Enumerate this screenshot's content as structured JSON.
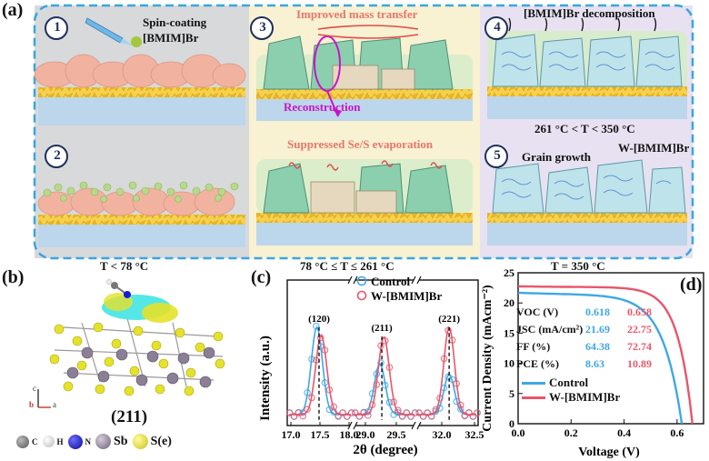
{
  "panel_labels": {
    "a": "(a)",
    "b": "(b)",
    "c": "(c)",
    "d": "(d)"
  },
  "panel_a": {
    "steps": [
      {
        "num": "1",
        "label": "Spin-coating\n[BMIM]Br"
      },
      {
        "num": "2",
        "label": "T < 78 °C"
      },
      {
        "num": "3",
        "label_top": "Improved mass transfer",
        "label_mid": "Reconstruction",
        "label_bottom": "Suppressed Se/S evaporation",
        "temp": "78 °C ≤ T ≤ 261 °C"
      },
      {
        "num": "4",
        "label": "[BMIM]Br decomposition",
        "temp": "261 °C < T < 350 °C"
      },
      {
        "num": "5",
        "label": "Grain growth",
        "label2": "W-[BMIM]Br",
        "temp": "T = 350 °C"
      }
    ],
    "colors": {
      "col1": "#d8d9db",
      "col2": "#f8f1d2",
      "col3": "#e7e1f1",
      "border": "#39a6e0",
      "red_text": "#e8766b",
      "magenta": "#c914c9"
    }
  },
  "panel_b": {
    "plane": "(211)",
    "axes": {
      "c": "c",
      "b": "b",
      "a": "a"
    },
    "legend": [
      {
        "sym": "C",
        "name": "C",
        "color": "#777777"
      },
      {
        "sym": "H",
        "name": "H",
        "color": "#eeeeee"
      },
      {
        "sym": "N",
        "name": "N",
        "color": "#1a1ad6"
      },
      {
        "sym": "Sb",
        "name": "Sb",
        "color": "#8a7f94"
      },
      {
        "sym": "S(e)",
        "name": "S(e)",
        "color": "#e6e22a"
      }
    ]
  },
  "chart_data": [
    {
      "type": "line",
      "title": "",
      "xlabel": "2θ (degree)",
      "ylabel": "Intensity (a.u.)",
      "x_ticks": [
        "17.0",
        "17.5",
        "18.0",
        "29.0",
        "29.5",
        "32.0",
        "32.5"
      ],
      "legend": [
        "Control",
        "W-[BMIM]Br"
      ],
      "peaks": [
        {
          "label": "(120)",
          "segment_range": [
            17.0,
            18.0
          ],
          "control_center": 17.45,
          "wbmim_center": 17.52,
          "control_height": 0.74,
          "wbmim_height": 0.67
        },
        {
          "label": "(211)",
          "segment_range": [
            28.8,
            29.7
          ],
          "control_center": 29.18,
          "wbmim_center": 29.24,
          "control_height": 0.43,
          "wbmim_height": 0.66
        },
        {
          "label": "(221)",
          "segment_range": [
            32.0,
            32.6
          ],
          "control_center": 32.32,
          "wbmim_center": 32.32,
          "control_height": 0.34,
          "wbmim_height": 0.74
        }
      ],
      "colors": {
        "Control": "#3fa7e6",
        "W-[BMIM]Br": "#e8566b"
      }
    },
    {
      "type": "line",
      "title": "",
      "xlabel": "Voltage (V)",
      "ylabel": "Current Density (mAcm⁻²)",
      "xlim": [
        0.0,
        0.7
      ],
      "ylim": [
        0,
        25
      ],
      "x_ticks": [
        "0.0",
        "0.2",
        "0.4",
        "0.6"
      ],
      "y_ticks": [
        "0",
        "5",
        "10",
        "15",
        "20",
        "25"
      ],
      "series": [
        {
          "name": "Control",
          "jsc": 21.69,
          "voc": 0.618,
          "color": "#3fa7e6"
        },
        {
          "name": "W-[BMIM]Br",
          "jsc": 22.75,
          "voc": 0.658,
          "color": "#e8566b"
        }
      ],
      "table": {
        "rows": [
          {
            "label": "VOC (V)",
            "control": "0.618",
            "w": "0.658"
          },
          {
            "label": "JSC (mA/cm²)",
            "control": "21.69",
            "w": "22.75"
          },
          {
            "label": "FF (%)",
            "control": "64.38",
            "w": "72.74"
          },
          {
            "label": "PCE (%)",
            "control": "8.63",
            "w": "10.89"
          }
        ]
      }
    }
  ]
}
